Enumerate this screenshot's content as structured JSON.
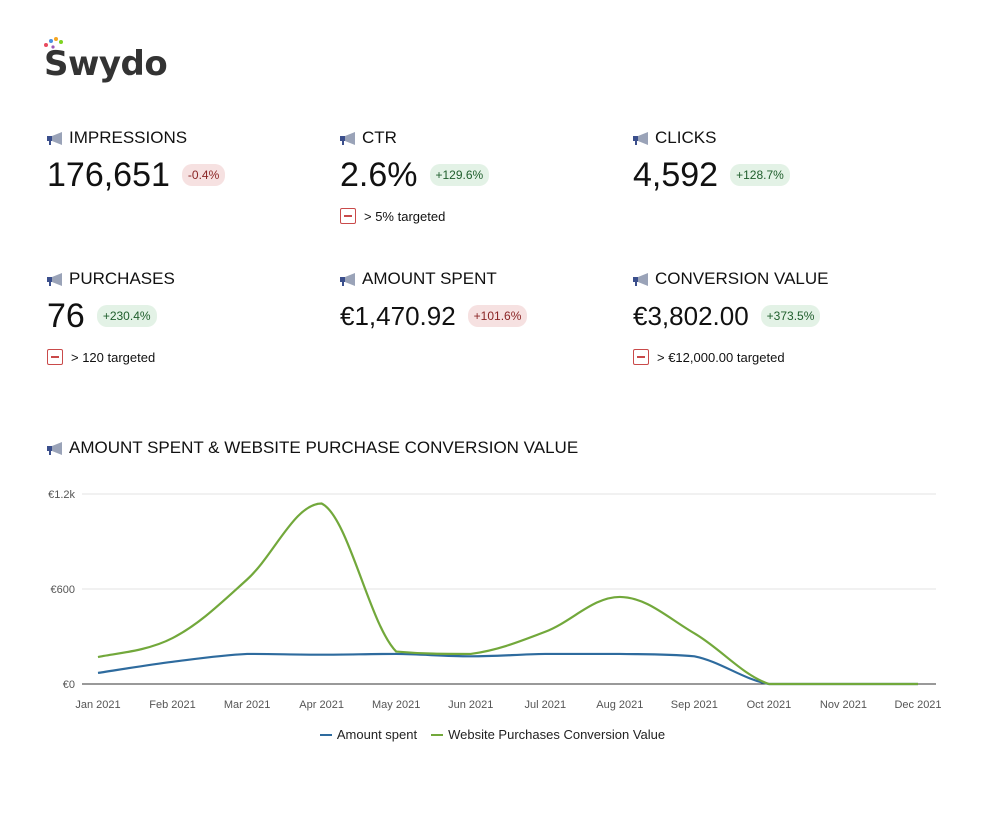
{
  "brand": {
    "name": "Swydo"
  },
  "kpis": [
    {
      "title": "IMPRESSIONS",
      "value": "176,651",
      "change": "-0.4%",
      "trend": "neg",
      "target": ""
    },
    {
      "title": "CTR",
      "value": "2.6%",
      "change": "+129.6%",
      "trend": "pos",
      "target": "> 5% targeted"
    },
    {
      "title": "CLICKS",
      "value": "4,592",
      "change": "+128.7%",
      "trend": "pos",
      "target": ""
    },
    {
      "title": "PURCHASES",
      "value": "76",
      "change": "+230.4%",
      "trend": "pos",
      "target": "> 120 targeted"
    },
    {
      "title": "AMOUNT SPENT",
      "value": "€1,470.92",
      "change": "+101.6%",
      "trend": "neg",
      "target": ""
    },
    {
      "title": "CONVERSION VALUE",
      "value": "€3,802.00",
      "change": "+373.5%",
      "trend": "pos",
      "target": "> €12,000.00 targeted"
    }
  ],
  "colors": {
    "amount_spent": "#2e6b9e",
    "conversion_value": "#72a83b",
    "badge_pos_bg": "#e3f2e6",
    "badge_neg_bg": "#f6e1e1",
    "target_icon": "#c94a4a"
  },
  "chart_data": {
    "type": "line",
    "title": "AMOUNT SPENT & WEBSITE PURCHASE CONVERSION VALUE",
    "categories": [
      "Jan 2021",
      "Feb 2021",
      "Mar 2021",
      "Apr 2021",
      "May 2021",
      "Jun 2021",
      "Jul 2021",
      "Aug 2021",
      "Sep 2021",
      "Oct 2021",
      "Nov 2021",
      "Dec 2021"
    ],
    "series": [
      {
        "name": "Amount spent",
        "values": [
          70,
          140,
          190,
          185,
          190,
          175,
          190,
          190,
          175,
          0,
          0,
          0
        ]
      },
      {
        "name": "Website Purchases Conversion Value",
        "values": [
          170,
          290,
          660,
          1140,
          205,
          190,
          330,
          550,
          320,
          0,
          0,
          0
        ]
      }
    ],
    "ylim": [
      0,
      1200
    ],
    "yticks": [
      {
        "value": 0,
        "label": "€0"
      },
      {
        "value": 600,
        "label": "€600"
      },
      {
        "value": 1200,
        "label": "€1.2k"
      }
    ],
    "grid": true,
    "legend": "bottom"
  }
}
